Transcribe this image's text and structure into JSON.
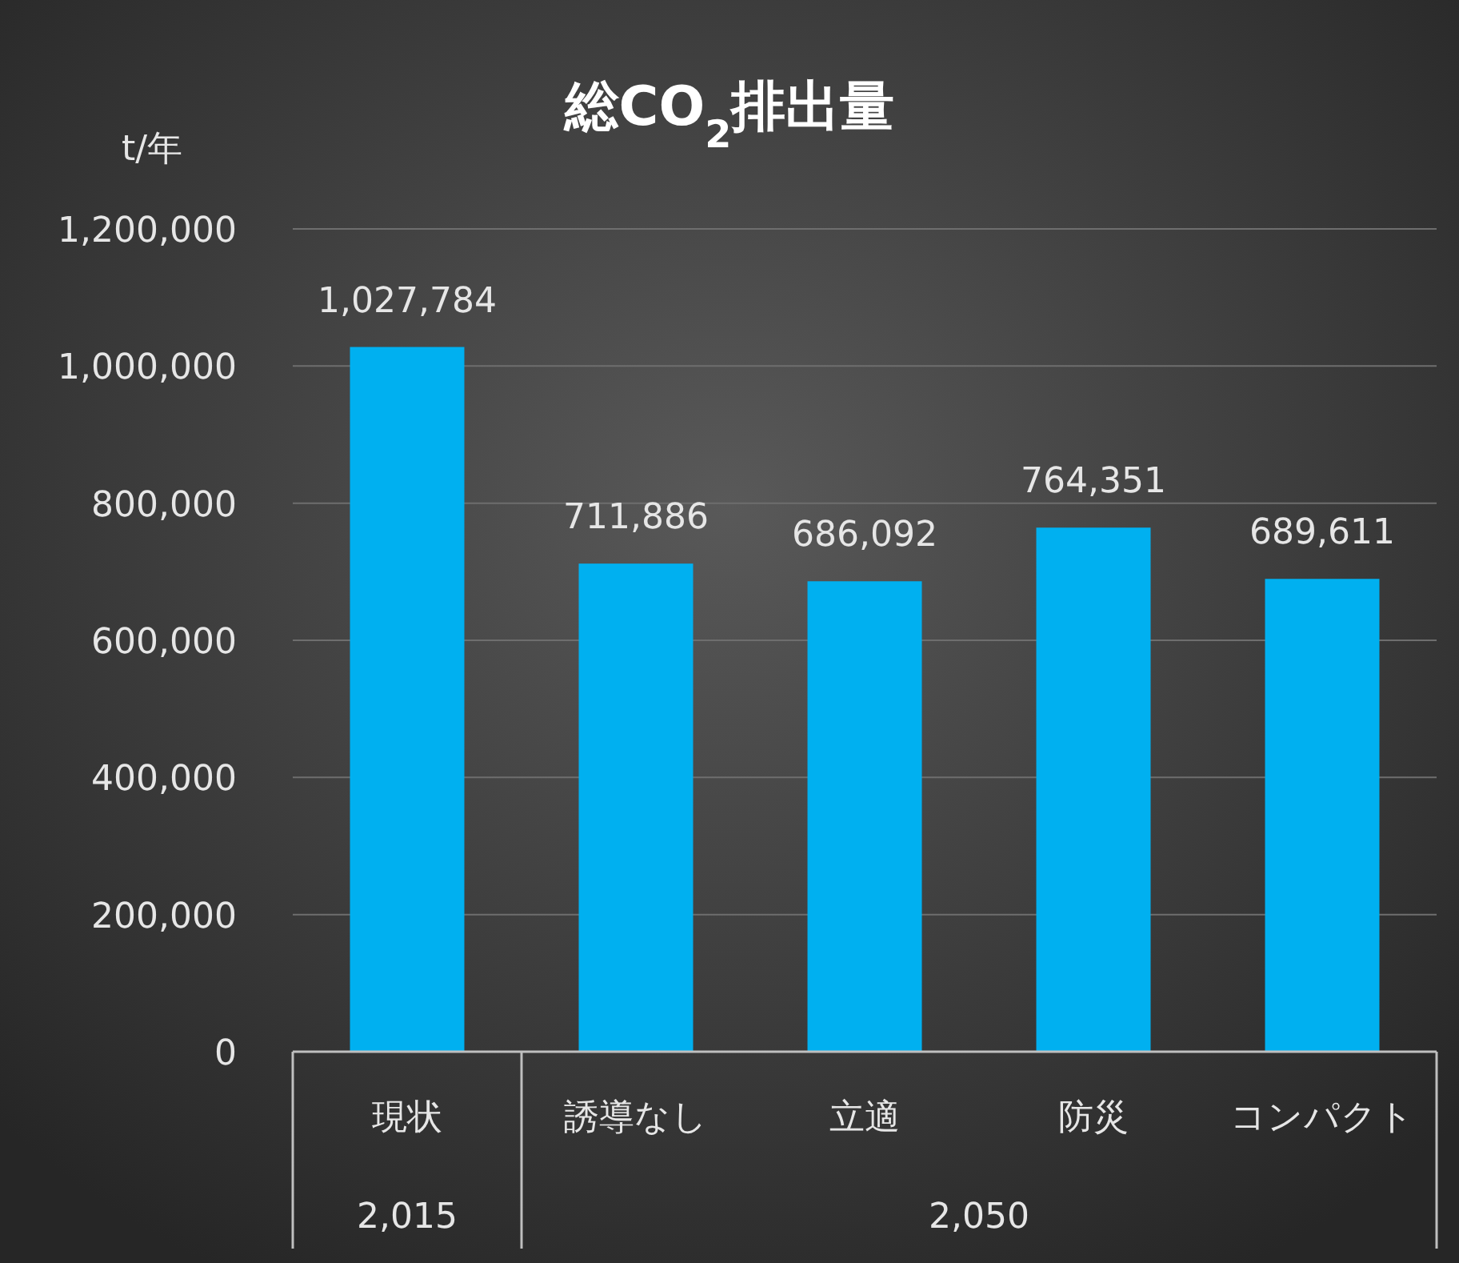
{
  "chart_data": {
    "type": "bar",
    "title": "総CO$_{2}$排出量",
    "ylabel": "t/年",
    "categories": [
      "現状",
      "誘導なし",
      "立適",
      "防災",
      "コンパクト"
    ],
    "values": [
      1027784,
      711886,
      686092,
      764351,
      689611
    ],
    "color": "#00b0f0",
    "ylim": [
      0,
      1200000
    ],
    "yticks": [
      {
        "value": 0,
        "label": "0"
      },
      {
        "value": 200000,
        "label": "200,000"
      },
      {
        "value": 400000,
        "label": "400,000"
      },
      {
        "value": 600000,
        "label": "600,000"
      },
      {
        "value": 800000,
        "label": "800,000"
      },
      {
        "value": 1000000,
        "label": "1,000,000"
      },
      {
        "value": 1200000,
        "label": "1,200,000"
      }
    ],
    "grid": "y",
    "value_labels": [
      "1,027,784",
      "711,886",
      "686,092",
      "764,351",
      "689,611"
    ],
    "annotations": [
      "2,015",
      "2,050"
    ]
  }
}
